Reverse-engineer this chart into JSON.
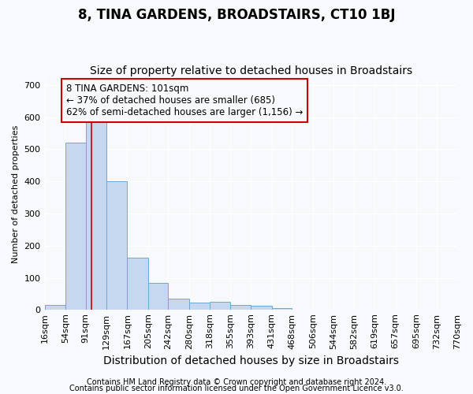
{
  "title": "8, TINA GARDENS, BROADSTAIRS, CT10 1BJ",
  "subtitle": "Size of property relative to detached houses in Broadstairs",
  "xlabel": "Distribution of detached houses by size in Broadstairs",
  "ylabel": "Number of detached properties",
  "bar_edges": [
    16,
    54,
    91,
    129,
    167,
    205,
    242,
    280,
    318,
    355,
    393,
    431,
    468,
    506,
    544,
    582,
    619,
    657,
    695,
    732,
    770
  ],
  "bar_heights": [
    15,
    520,
    585,
    400,
    163,
    85,
    35,
    22,
    25,
    15,
    12,
    5,
    0,
    0,
    0,
    0,
    0,
    0,
    0,
    0
  ],
  "bar_color": "#c5d8f0",
  "bar_edge_color": "#6aaad4",
  "property_line_x": 101,
  "property_line_color": "#cc0000",
  "annotation_text": "8 TINA GARDENS: 101sqm\n← 37% of detached houses are smaller (685)\n62% of semi-detached houses are larger (1,156) →",
  "annotation_box_color": "#cc0000",
  "annotation_fontsize": 8.5,
  "ylim": [
    0,
    720
  ],
  "yticks": [
    0,
    100,
    200,
    300,
    400,
    500,
    600,
    700
  ],
  "footer_line1": "Contains HM Land Registry data © Crown copyright and database right 2024.",
  "footer_line2": "Contains public sector information licensed under the Open Government Licence v3.0.",
  "background_color": "#f7f9fc",
  "plot_bg_color": "#f7f9fc",
  "grid_color": "#ffffff",
  "title_fontsize": 12,
  "subtitle_fontsize": 10,
  "xlabel_fontsize": 10,
  "ylabel_fontsize": 8,
  "tick_fontsize": 8,
  "footer_fontsize": 7
}
